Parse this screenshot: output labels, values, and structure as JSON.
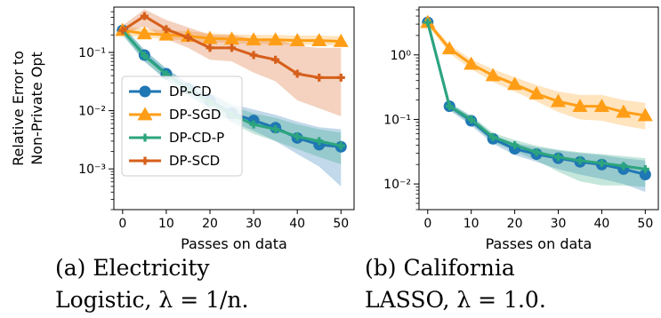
{
  "colors": {
    "dp_cd": "#1f77b4",
    "dp_sgd": "#ff9e16",
    "dp_cd_p": "#2ca57e",
    "dp_scd": "#d65f1a"
  },
  "chart_data": [
    {
      "type": "line",
      "xlabel": "Passes on data",
      "ylabel": [
        "Relative Error to",
        "Non-Private Opt"
      ],
      "xlim": [
        -2,
        53
      ],
      "ylim": [
        0.0002,
        0.6
      ],
      "yscale": "log",
      "xticks": [
        0,
        10,
        20,
        30,
        40,
        50
      ],
      "yticks": [
        {
          "v": 0.1,
          "label": "10⁻¹"
        },
        {
          "v": 0.01,
          "label": "10⁻²"
        },
        {
          "v": 0.001,
          "label": "10⁻³"
        }
      ],
      "legend": {
        "placement": "center-left",
        "entries": [
          "DP-CD",
          "DP-SGD",
          "DP-CD-P",
          "DP-SCD"
        ]
      },
      "series": [
        {
          "name": "DP-CD",
          "color_key": "dp_cd",
          "marker": "circle",
          "x": [
            0,
            5,
            10,
            15,
            20,
            25,
            30,
            35,
            40,
            45,
            50
          ],
          "values": [
            0.24,
            0.09,
            0.043,
            0.024,
            0.015,
            0.009,
            0.0068,
            0.0051,
            0.0034,
            0.0026,
            0.0024
          ],
          "band_low": [
            0.2,
            0.07,
            0.034,
            0.019,
            0.011,
            0.0065,
            0.0045,
            0.003,
            0.0018,
            0.0011,
            0.0005
          ],
          "band_high": [
            0.29,
            0.11,
            0.053,
            0.03,
            0.02,
            0.013,
            0.0105,
            0.0085,
            0.0065,
            0.0052,
            0.0048
          ]
        },
        {
          "name": "DP-SGD",
          "color_key": "dp_sgd",
          "marker": "triangle",
          "x": [
            0,
            5,
            10,
            15,
            20,
            25,
            30,
            35,
            40,
            45,
            50
          ],
          "values": [
            0.24,
            0.21,
            0.2,
            0.19,
            0.175,
            0.17,
            0.165,
            0.165,
            0.16,
            0.16,
            0.155
          ],
          "band_low": [
            0.2,
            0.18,
            0.17,
            0.16,
            0.15,
            0.145,
            0.14,
            0.14,
            0.135,
            0.135,
            0.13
          ],
          "band_high": [
            0.29,
            0.25,
            0.24,
            0.23,
            0.215,
            0.205,
            0.2,
            0.2,
            0.195,
            0.195,
            0.19
          ]
        },
        {
          "name": "DP-CD-P",
          "color_key": "dp_cd_p",
          "marker": "plus",
          "x": [
            0,
            5,
            10,
            15,
            20,
            25,
            30,
            35,
            40,
            45,
            50
          ],
          "values": [
            0.24,
            0.088,
            0.042,
            0.023,
            0.014,
            0.0085,
            0.0058,
            0.0048,
            0.0036,
            0.003,
            0.0025
          ],
          "band_low": [
            0.2,
            0.07,
            0.033,
            0.018,
            0.0105,
            0.0062,
            0.004,
            0.003,
            0.0022,
            0.0016,
            0.0012
          ],
          "band_high": [
            0.29,
            0.11,
            0.052,
            0.029,
            0.019,
            0.012,
            0.009,
            0.0075,
            0.0058,
            0.0048,
            0.0042
          ]
        },
        {
          "name": "DP-SCD",
          "color_key": "dp_scd",
          "marker": "plus",
          "x": [
            0,
            5,
            10,
            15,
            20,
            25,
            30,
            35,
            40,
            45,
            50
          ],
          "values": [
            0.24,
            0.42,
            0.25,
            0.18,
            0.12,
            0.12,
            0.09,
            0.075,
            0.043,
            0.037,
            0.037
          ],
          "band_low": [
            0.2,
            0.28,
            0.17,
            0.12,
            0.075,
            0.07,
            0.045,
            0.032,
            0.015,
            0.011,
            0.008
          ],
          "band_high": [
            0.29,
            0.55,
            0.36,
            0.27,
            0.2,
            0.2,
            0.17,
            0.17,
            0.13,
            0.12,
            0.12
          ]
        }
      ]
    },
    {
      "type": "line",
      "xlabel": "Passes on data",
      "ylabel": [],
      "xlim": [
        -2,
        53
      ],
      "ylim": [
        0.004,
        5.5
      ],
      "yscale": "log",
      "xticks": [
        0,
        10,
        20,
        30,
        40,
        50
      ],
      "yticks": [
        {
          "v": 1,
          "label": "10⁰"
        },
        {
          "v": 0.1,
          "label": "10⁻¹"
        },
        {
          "v": 0.01,
          "label": "10⁻²"
        }
      ],
      "series": [
        {
          "name": "DP-CD",
          "color_key": "dp_cd",
          "marker": "circle",
          "x": [
            0,
            5,
            10,
            15,
            20,
            25,
            30,
            35,
            40,
            45,
            50
          ],
          "values": [
            3.2,
            0.16,
            0.095,
            0.05,
            0.035,
            0.029,
            0.025,
            0.022,
            0.02,
            0.017,
            0.014
          ],
          "band_low": [
            2.9,
            0.14,
            0.08,
            0.042,
            0.028,
            0.022,
            0.017,
            0.014,
            0.012,
            0.01,
            0.0075
          ],
          "band_high": [
            3.5,
            0.18,
            0.11,
            0.058,
            0.043,
            0.037,
            0.033,
            0.03,
            0.028,
            0.025,
            0.023
          ]
        },
        {
          "name": "DP-SGD",
          "color_key": "dp_sgd",
          "marker": "triangle",
          "x": [
            0,
            5,
            10,
            15,
            20,
            25,
            30,
            35,
            40,
            45,
            50
          ],
          "values": [
            3.2,
            1.25,
            0.72,
            0.48,
            0.35,
            0.25,
            0.19,
            0.16,
            0.16,
            0.13,
            0.115
          ],
          "band_low": [
            2.9,
            1.05,
            0.6,
            0.38,
            0.27,
            0.19,
            0.13,
            0.1,
            0.095,
            0.08,
            0.07
          ],
          "band_high": [
            3.5,
            1.45,
            0.85,
            0.6,
            0.45,
            0.34,
            0.27,
            0.24,
            0.24,
            0.2,
            0.18
          ]
        },
        {
          "name": "DP-CD-P",
          "color_key": "dp_cd_p",
          "marker": "plus",
          "x": [
            0,
            5,
            10,
            15,
            20,
            25,
            30,
            35,
            40,
            45,
            50
          ],
          "values": [
            3.2,
            0.16,
            0.1,
            0.053,
            0.04,
            0.031,
            0.026,
            0.023,
            0.021,
            0.019,
            0.017
          ],
          "band_low": [
            2.9,
            0.14,
            0.085,
            0.044,
            0.032,
            0.023,
            0.0155,
            0.011,
            0.0095,
            0.0095,
            0.009
          ],
          "band_high": [
            3.5,
            0.18,
            0.115,
            0.062,
            0.048,
            0.039,
            0.034,
            0.031,
            0.029,
            0.027,
            0.025
          ]
        }
      ]
    }
  ],
  "captions": [
    {
      "line1": "(a) Electricity",
      "line2": "Logistic, λ = 1/n."
    },
    {
      "line1": "(b) California",
      "line2": "LASSO, λ = 1.0."
    }
  ]
}
